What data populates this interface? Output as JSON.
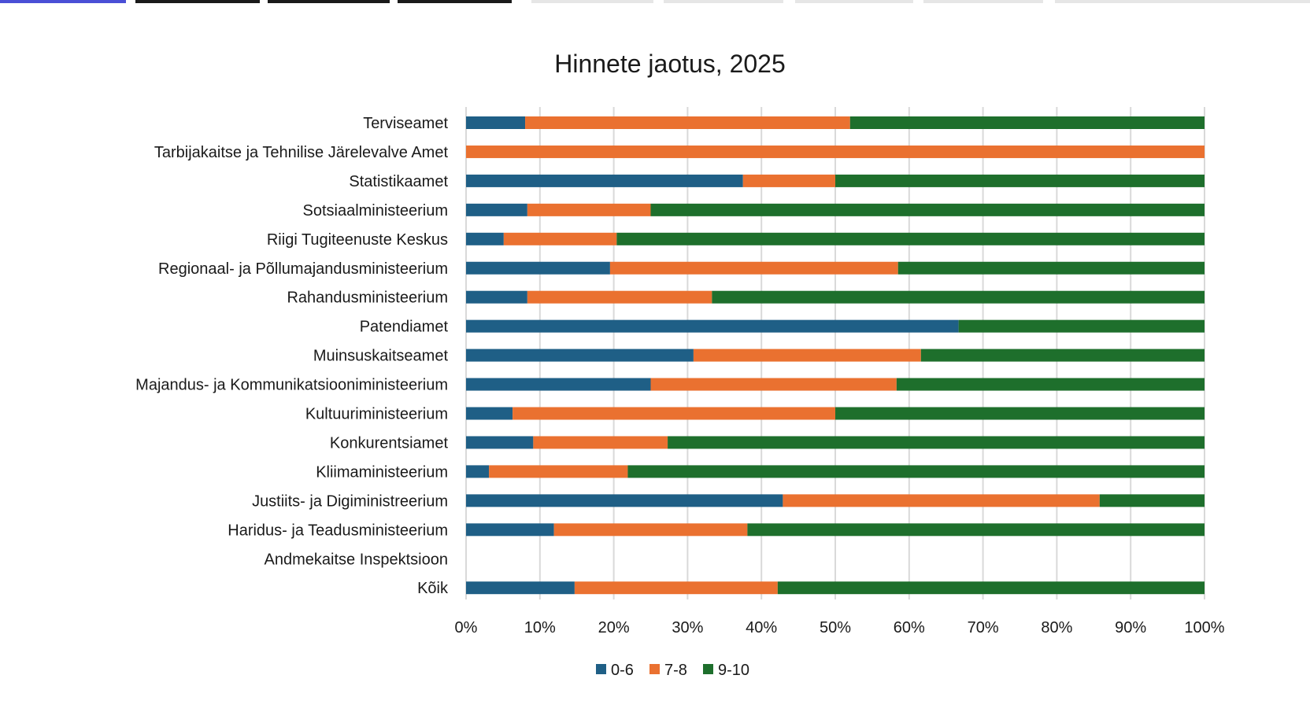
{
  "chart_data": {
    "type": "bar",
    "orientation": "horizontal",
    "stacked": "percent",
    "title": "Hinnete jaotus, 2025",
    "categories": [
      "Terviseamet",
      "Tarbijakaitse ja Tehnilise Järelevalve Amet",
      "Statistikaamet",
      "Sotsiaalministeerium",
      "Riigi Tugiteenuste Keskus",
      "Regionaal- ja Põllumajandusministeerium",
      "Rahandusministeerium",
      "Patendiamet",
      "Muinsuskaitseamet",
      "Majandus- ja Kommunikatsiooniministeerium",
      "Kultuuriministeerium",
      "Konkurentsiamet",
      "Kliimaministeerium",
      "Justiits- ja Digiministreerium",
      "Haridus- ja Teadusministeerium",
      "Andmekaitse Inspektsioon",
      "Kõik"
    ],
    "series": [
      {
        "name": "0-6",
        "color": "#1f5f86",
        "values": [
          8,
          0,
          37.5,
          8.3,
          5.1,
          19.5,
          8.3,
          66.7,
          30.8,
          25,
          6.3,
          9.1,
          3.1,
          42.9,
          11.9,
          0,
          14.7
        ]
      },
      {
        "name": "7-8",
        "color": "#ea7130",
        "values": [
          44,
          100,
          12.5,
          16.7,
          15.3,
          39,
          25,
          0,
          30.8,
          33.3,
          43.7,
          18.2,
          18.8,
          42.9,
          26.2,
          0,
          27.5
        ]
      },
      {
        "name": "9-10",
        "color": "#1e6f2c",
        "values": [
          48,
          0,
          50,
          75,
          79.6,
          41.5,
          66.7,
          33.3,
          38.4,
          41.7,
          50,
          72.7,
          78.1,
          14.2,
          61.9,
          0,
          57.8
        ]
      }
    ],
    "x_ticks": [
      "0%",
      "10%",
      "20%",
      "30%",
      "40%",
      "50%",
      "60%",
      "70%",
      "80%",
      "90%",
      "100%"
    ],
    "xlim": [
      0,
      100
    ],
    "grid": "vertical",
    "legend_position": "bottom"
  },
  "top_strip_colors": [
    "#4a4fd6",
    "#1a1a1a",
    "#1a1a1a",
    "#1a1a1a",
    "#e6e6e6",
    "#e6e6e6",
    "#e6e6e6",
    "#e6e6e6",
    "#e6e6e6"
  ]
}
